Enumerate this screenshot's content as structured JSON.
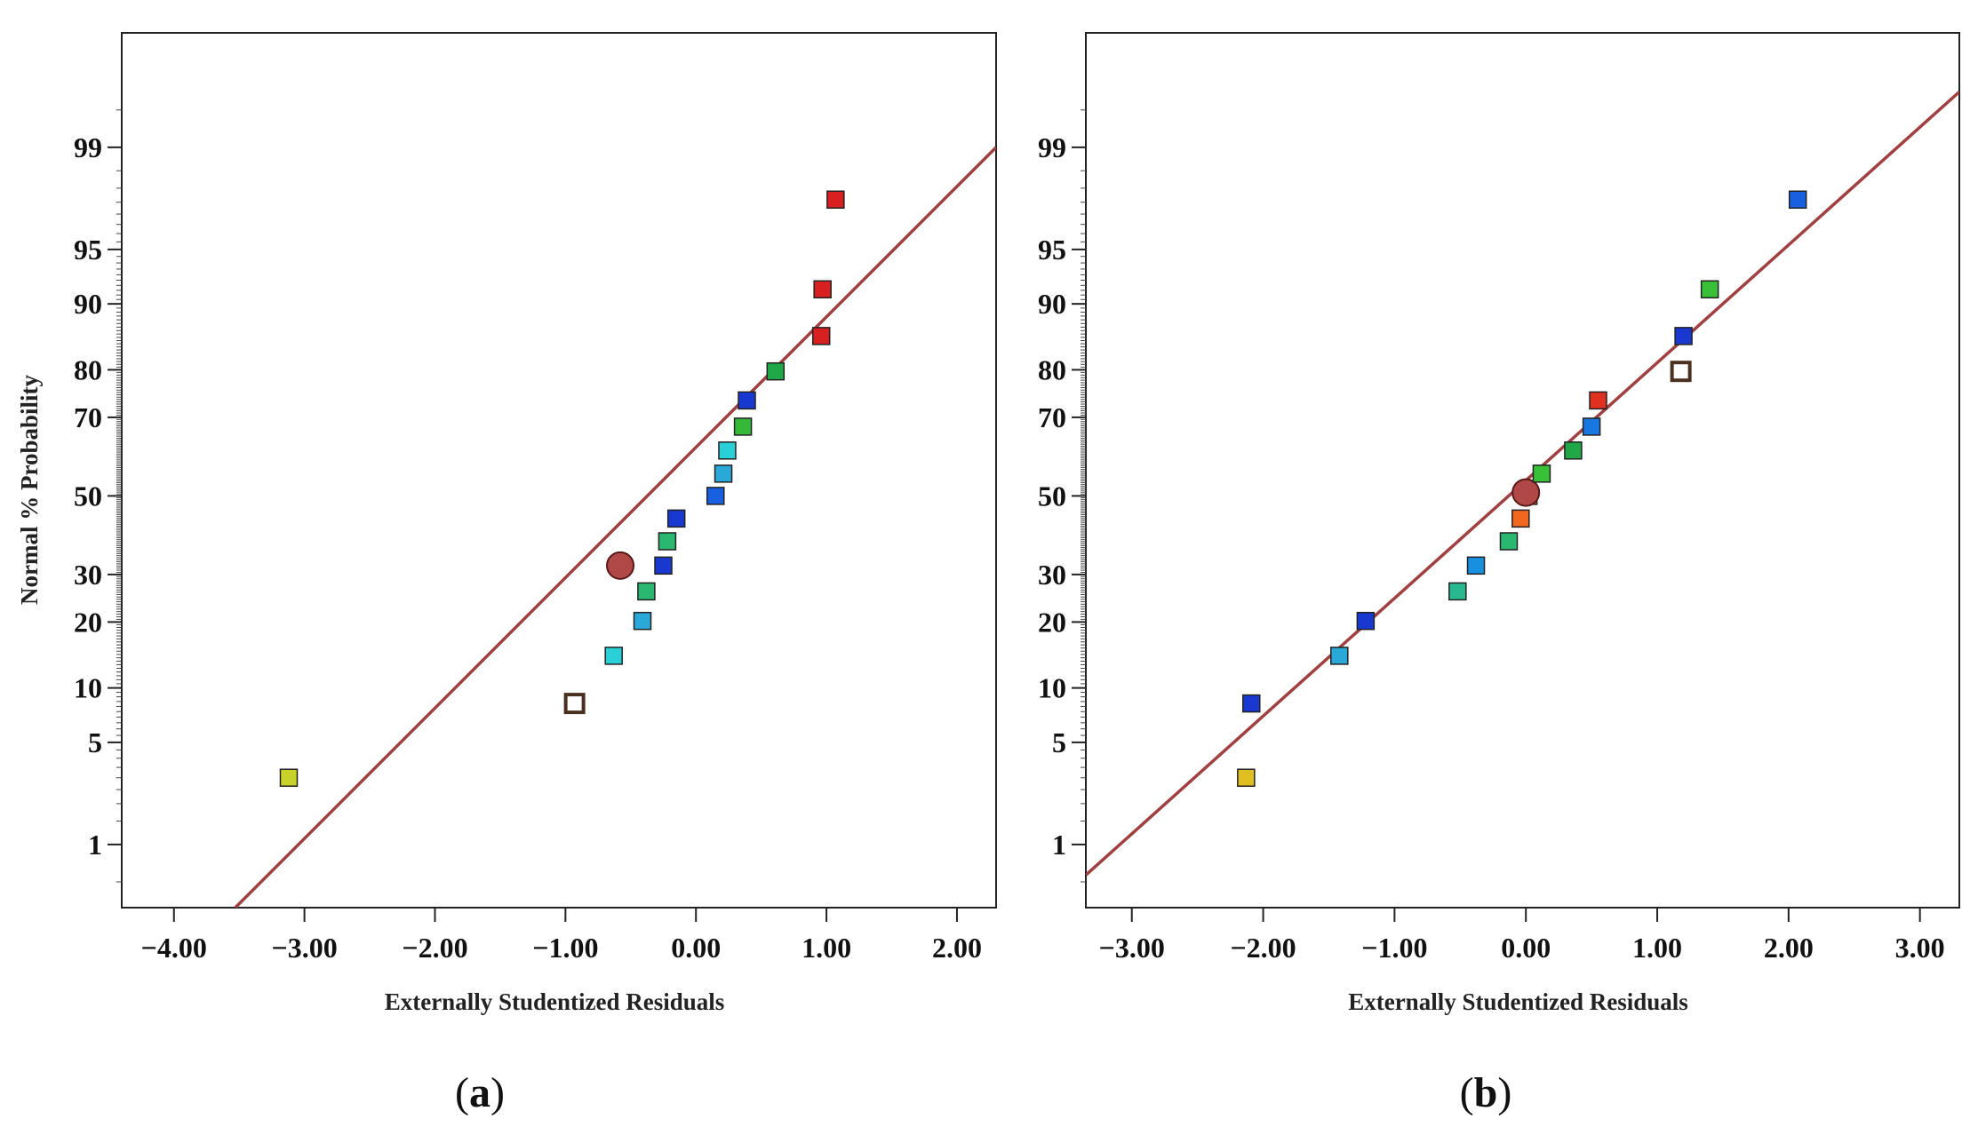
{
  "chart_data": [
    {
      "type": "scatter",
      "panel_id": "a",
      "caption_open": "(",
      "caption_letter": "a",
      "caption_close": ")",
      "title": "",
      "xlabel": "Externally Studentized Residuals",
      "ylabel": "Normal % Probability",
      "xlim": [
        -4.4,
        2.3
      ],
      "x_ticks": [
        -4,
        -3,
        -2,
        -1,
        0,
        1,
        2
      ],
      "x_tick_labels": [
        "-4.00",
        "-3.00",
        "-2.00",
        "-1.00",
        "0.00",
        "1.00",
        "2.00"
      ],
      "y_scale": "normal-probability",
      "ylim_percent": [
        0.3,
        99.9
      ],
      "y_ticks": [
        1,
        5,
        10,
        20,
        30,
        50,
        70,
        80,
        90,
        95,
        99
      ],
      "y_tick_labels": [
        "1",
        "5",
        "10",
        "20",
        "30",
        "50",
        "70",
        "80",
        "90",
        "95",
        "99"
      ],
      "fit_line": {
        "points": [
          [
            -3.53,
            0.3
          ],
          [
            2.3,
            99.0
          ]
        ],
        "color": "#a04040"
      },
      "points": [
        {
          "x": -3.12,
          "y": 3.0,
          "color": "#c8d22a",
          "marker": "square"
        },
        {
          "x": -0.93,
          "y": 8.3,
          "color": "#ffffff",
          "marker": "open-square"
        },
        {
          "x": -0.63,
          "y": 14.3,
          "color": "#2ad0d8",
          "marker": "square"
        },
        {
          "x": -0.41,
          "y": 20.2,
          "color": "#2aa8d8",
          "marker": "square"
        },
        {
          "x": -0.38,
          "y": 26.2,
          "color": "#2ab870",
          "marker": "square"
        },
        {
          "x": -0.58,
          "y": 32.1,
          "color": "#b04848",
          "marker": "circle"
        },
        {
          "x": -0.25,
          "y": 32.1,
          "color": "#1838d0",
          "marker": "square"
        },
        {
          "x": -0.22,
          "y": 38.1,
          "color": "#2ab870",
          "marker": "square"
        },
        {
          "x": -0.15,
          "y": 44.0,
          "color": "#1838d0",
          "marker": "square"
        },
        {
          "x": 0.15,
          "y": 50.0,
          "color": "#1860e0",
          "marker": "square"
        },
        {
          "x": 0.21,
          "y": 55.9,
          "color": "#2aa8d8",
          "marker": "square"
        },
        {
          "x": 0.24,
          "y": 61.9,
          "color": "#2ad0d8",
          "marker": "square"
        },
        {
          "x": 0.36,
          "y": 67.8,
          "color": "#38b838",
          "marker": "square"
        },
        {
          "x": 0.39,
          "y": 73.8,
          "color": "#1838d0",
          "marker": "square"
        },
        {
          "x": 0.61,
          "y": 79.7,
          "color": "#20a848",
          "marker": "square"
        },
        {
          "x": 0.96,
          "y": 85.7,
          "color": "#d82020",
          "marker": "square"
        },
        {
          "x": 0.97,
          "y": 91.6,
          "color": "#d82020",
          "marker": "square"
        },
        {
          "x": 1.07,
          "y": 97.6,
          "color": "#d82020",
          "marker": "square"
        }
      ]
    },
    {
      "type": "scatter",
      "panel_id": "b",
      "caption_open": "(",
      "caption_letter": "b",
      "caption_close": ")",
      "title": "",
      "xlabel": "Externally Studentized Residuals",
      "ylabel": "",
      "xlim": [
        -3.35,
        3.3
      ],
      "x_ticks": [
        -3,
        -2,
        -1,
        0,
        1,
        2,
        3
      ],
      "x_tick_labels": [
        "-3.00",
        "-2.00",
        "-1.00",
        "0.00",
        "1.00",
        "2.00",
        "3.00"
      ],
      "y_scale": "normal-probability",
      "ylim_percent": [
        0.3,
        99.9
      ],
      "y_ticks": [
        1,
        5,
        10,
        20,
        30,
        50,
        70,
        80,
        90,
        95,
        99
      ],
      "y_tick_labels": [
        "1",
        "5",
        "10",
        "20",
        "30",
        "50",
        "70",
        "80",
        "90",
        "95",
        "99"
      ],
      "fit_line": {
        "points": [
          [
            -3.35,
            0.57
          ],
          [
            3.3,
            99.65
          ]
        ],
        "color": "#a04040"
      },
      "points": [
        {
          "x": -2.13,
          "y": 3.0,
          "color": "#e0c020",
          "marker": "square"
        },
        {
          "x": -2.09,
          "y": 8.3,
          "color": "#1838d0",
          "marker": "square"
        },
        {
          "x": -1.42,
          "y": 14.3,
          "color": "#2aa8d8",
          "marker": "square"
        },
        {
          "x": -1.22,
          "y": 20.2,
          "color": "#1838d0",
          "marker": "square"
        },
        {
          "x": -0.52,
          "y": 26.2,
          "color": "#2ab890",
          "marker": "square"
        },
        {
          "x": -0.38,
          "y": 32.1,
          "color": "#1890e0",
          "marker": "square"
        },
        {
          "x": -0.13,
          "y": 38.1,
          "color": "#2ab870",
          "marker": "square"
        },
        {
          "x": -0.04,
          "y": 44.0,
          "color": "#f06820",
          "marker": "square"
        },
        {
          "x": 0.02,
          "y": 50.0,
          "color": "#f08020",
          "marker": "square"
        },
        {
          "x": 0.0,
          "y": 50.9,
          "color": "#b04848",
          "marker": "circle"
        },
        {
          "x": 0.12,
          "y": 55.9,
          "color": "#38c038",
          "marker": "square"
        },
        {
          "x": 0.36,
          "y": 61.9,
          "color": "#20a848",
          "marker": "square"
        },
        {
          "x": 0.5,
          "y": 67.8,
          "color": "#1878e0",
          "marker": "square"
        },
        {
          "x": 0.55,
          "y": 73.8,
          "color": "#e03020",
          "marker": "square"
        },
        {
          "x": 1.18,
          "y": 79.7,
          "color": "#ffffff",
          "marker": "open-square"
        },
        {
          "x": 1.2,
          "y": 85.7,
          "color": "#1838d0",
          "marker": "square"
        },
        {
          "x": 1.4,
          "y": 91.6,
          "color": "#38c038",
          "marker": "square"
        },
        {
          "x": 2.07,
          "y": 97.6,
          "color": "#1860e0",
          "marker": "square"
        }
      ]
    }
  ]
}
